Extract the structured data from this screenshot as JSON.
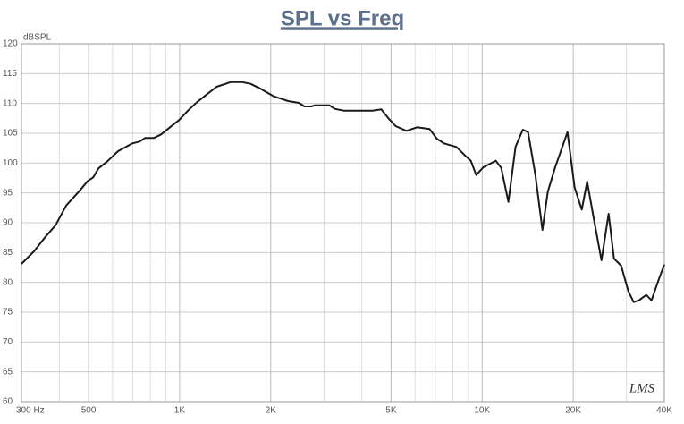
{
  "chart_data": {
    "type": "line",
    "title": "SPL vs Freq",
    "ylabel": "dBSPL",
    "annotation": "LMS",
    "x": [
      300,
      330,
      358,
      389,
      422,
      464,
      497,
      518,
      539,
      577,
      626,
      698,
      737,
      768,
      822,
      868,
      929,
      995,
      1065,
      1140,
      1221,
      1325,
      1477,
      1603,
      1716,
      1862,
      2049,
      2284,
      2480,
      2583,
      2727,
      2802,
      3126,
      3255,
      3486,
      3888,
      4335,
      4641,
      4899,
      5175,
      5616,
      6093,
      6702,
      7077,
      7476,
      8223,
      8805,
      9171,
      9552,
      10089,
      11094,
      11559,
      12210,
      12891,
      13617,
      14184,
      14979,
      15816,
      16476,
      17397,
      19137,
      20208,
      21342,
      22230,
      23475,
      24789,
      26181,
      27273,
      28800,
      30420,
      31680,
      33000,
      34860,
      36300,
      38340,
      40000
    ],
    "series": [
      {
        "name": "SPL",
        "color": "#1a1a1a",
        "values": [
          83.1,
          85.2,
          87.5,
          89.6,
          92.9,
          95.2,
          97.0,
          97.6,
          99.1,
          100.3,
          102.0,
          103.3,
          103.6,
          104.2,
          104.2,
          104.8,
          106.0,
          107.2,
          108.8,
          110.2,
          111.4,
          112.8,
          113.6,
          113.6,
          113.3,
          112.4,
          111.2,
          110.4,
          110.1,
          109.5,
          109.5,
          109.7,
          109.7,
          109.1,
          108.8,
          108.8,
          108.8,
          109.0,
          107.5,
          106.2,
          105.4,
          106.0,
          105.7,
          104.1,
          103.3,
          102.7,
          101.2,
          100.4,
          98.0,
          99.3,
          100.4,
          99.2,
          93.5,
          102.7,
          105.6,
          105.2,
          98.1,
          88.8,
          95.2,
          99.2,
          105.2,
          95.9,
          92.2,
          96.9,
          90.2,
          83.7,
          91.5,
          84.0,
          82.8,
          78.5,
          76.7,
          77.0,
          77.9,
          77.0,
          80.5,
          83.0
        ]
      }
    ],
    "xscale": "log",
    "xlim": [
      300,
      40000
    ],
    "ylim": [
      60,
      120
    ],
    "xticks": [
      {
        "value": 300,
        "label": "300 Hz"
      },
      500,
      {
        "value": 1000,
        "label": "1K"
      },
      {
        "value": 2000,
        "label": "2K"
      },
      {
        "value": 5000,
        "label": "5K"
      },
      {
        "value": 10000,
        "label": "10K"
      },
      {
        "value": 20000,
        "label": "20K"
      },
      {
        "value": 40000,
        "label": "40K"
      }
    ],
    "xminor_ticks": [
      400,
      600,
      700,
      800,
      900,
      3000,
      4000,
      6000,
      7000,
      8000,
      9000,
      30000
    ],
    "yticks": [
      60,
      65,
      70,
      75,
      80,
      85,
      90,
      95,
      100,
      105,
      110,
      115,
      120
    ],
    "grid": true
  }
}
